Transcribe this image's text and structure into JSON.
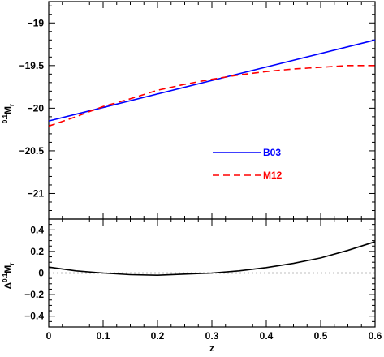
{
  "chart_data": [
    {
      "type": "line",
      "panel": "top",
      "ylabel": "0.1Mr",
      "ylabel_parts": {
        "super": "0.1",
        "main": "M",
        "sub": "r"
      },
      "xlim": [
        0,
        0.6
      ],
      "ylim": [
        -21.3,
        -18.75
      ],
      "y_inverted": true,
      "yticks": [
        -19,
        -19.5,
        -20,
        -20.5,
        -21
      ],
      "ytick_labels": [
        "-19",
        "-19.5",
        "-20",
        "-20.5",
        "-21"
      ],
      "series": [
        {
          "name": "B03",
          "color": "#0000ff",
          "style": "solid",
          "x": [
            0,
            0.6
          ],
          "y": [
            -20.15,
            -19.2
          ]
        },
        {
          "name": "M12",
          "color": "#ff0000",
          "style": "dashed",
          "x": [
            0,
            0.05,
            0.1,
            0.15,
            0.2,
            0.25,
            0.3,
            0.35,
            0.4,
            0.45,
            0.5,
            0.55,
            0.6
          ],
          "y": [
            -20.21,
            -20.1,
            -19.98,
            -19.89,
            -19.79,
            -19.72,
            -19.66,
            -19.61,
            -19.57,
            -19.54,
            -19.52,
            -19.5,
            -19.5
          ]
        }
      ],
      "legend_placement": "center-right"
    },
    {
      "type": "line",
      "panel": "bottom",
      "xlabel": "z",
      "ylabel": "Δ0.1Mr",
      "ylabel_parts": {
        "prefix": "Δ",
        "super": "0.1",
        "main": "M",
        "sub": "r"
      },
      "xlim": [
        0,
        0.6
      ],
      "ylim": [
        -0.5,
        0.5
      ],
      "xticks": [
        0,
        0.1,
        0.2,
        0.3,
        0.4,
        0.5,
        0.6
      ],
      "xtick_labels": [
        "0",
        "0.1",
        "0.2",
        "0.3",
        "0.4",
        "0.5",
        "0.6"
      ],
      "yticks": [
        0.4,
        0.2,
        0,
        -0.2,
        -0.4
      ],
      "ytick_labels": [
        "0.4",
        "0.2",
        "0",
        "-0.2",
        "-0.4"
      ],
      "series": [
        {
          "color": "#000000",
          "style": "solid",
          "x": [
            0,
            0.05,
            0.1,
            0.15,
            0.2,
            0.25,
            0.3,
            0.35,
            0.4,
            0.45,
            0.5,
            0.55,
            0.6
          ],
          "y": [
            0.055,
            0.02,
            0.0,
            -0.015,
            -0.02,
            -0.01,
            0.0,
            0.02,
            0.05,
            0.09,
            0.14,
            0.21,
            0.29
          ]
        },
        {
          "color": "#000000",
          "style": "dotted",
          "x": [
            0,
            0.6
          ],
          "y": [
            0,
            0
          ]
        }
      ]
    }
  ]
}
